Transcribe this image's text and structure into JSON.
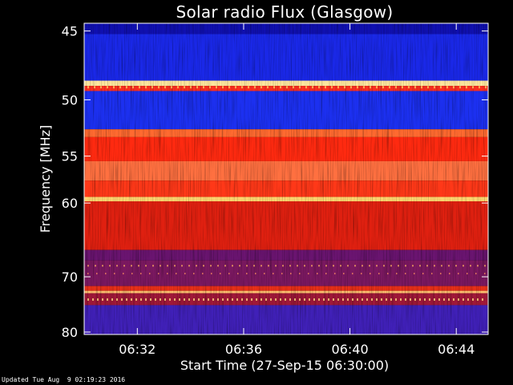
{
  "chart_data": {
    "type": "heatmap",
    "title": "Solar radio Flux (Glasgow)",
    "xlabel": "Start Time (27-Sep-15 06:30:00)",
    "ylabel": "Frequency [MHz]",
    "x_ticks": [
      {
        "value": 2,
        "label": "06:32"
      },
      {
        "value": 6,
        "label": "06:36"
      },
      {
        "value": 10,
        "label": "06:40"
      },
      {
        "value": 14,
        "label": "06:44"
      }
    ],
    "y_ticks": [
      {
        "value": 45,
        "label": "45"
      },
      {
        "value": 50,
        "label": "50"
      },
      {
        "value": 55,
        "label": "55"
      },
      {
        "value": 60,
        "label": "60"
      },
      {
        "value": 70,
        "label": "70"
      },
      {
        "value": 80,
        "label": "80"
      }
    ],
    "xlim": [
      0,
      15.2
    ],
    "ylim": [
      44.5,
      80.5
    ],
    "y_scale": "reciprocal",
    "intensity_bands": [
      {
        "from": 44.5,
        "to": 45.2,
        "color": "#1010b0"
      },
      {
        "from": 45.2,
        "to": 48.5,
        "color": "#1a28e8"
      },
      {
        "from": 48.5,
        "to": 48.9,
        "color": "#ffe8a0"
      },
      {
        "from": 48.9,
        "to": 49.3,
        "color": "#ff3020"
      },
      {
        "from": 49.3,
        "to": 52.5,
        "color": "#1c30f0"
      },
      {
        "from": 52.5,
        "to": 53.2,
        "color": "#ff6a30"
      },
      {
        "from": 53.2,
        "to": 55.5,
        "color": "#ff2a10"
      },
      {
        "from": 55.5,
        "to": 57.5,
        "color": "#ff7040"
      },
      {
        "from": 57.5,
        "to": 59.3,
        "color": "#ff3818"
      },
      {
        "from": 59.3,
        "to": 59.8,
        "color": "#ffd870"
      },
      {
        "from": 59.8,
        "to": 66.0,
        "color": "#e02010"
      },
      {
        "from": 66.0,
        "to": 67.5,
        "color": "#6a1470"
      },
      {
        "from": 67.5,
        "to": 71.5,
        "color": "#7a1860"
      },
      {
        "from": 71.5,
        "to": 72.3,
        "color": "#e83018"
      },
      {
        "from": 72.3,
        "to": 72.7,
        "color": "#ffc070"
      },
      {
        "from": 72.7,
        "to": 74.8,
        "color": "#a01838"
      },
      {
        "from": 74.8,
        "to": 80.5,
        "color": "#4020b8"
      }
    ],
    "grid": false,
    "legend": "none"
  },
  "footer": {
    "updated": "Updated Tue Aug  9 02:19:23 2016"
  }
}
